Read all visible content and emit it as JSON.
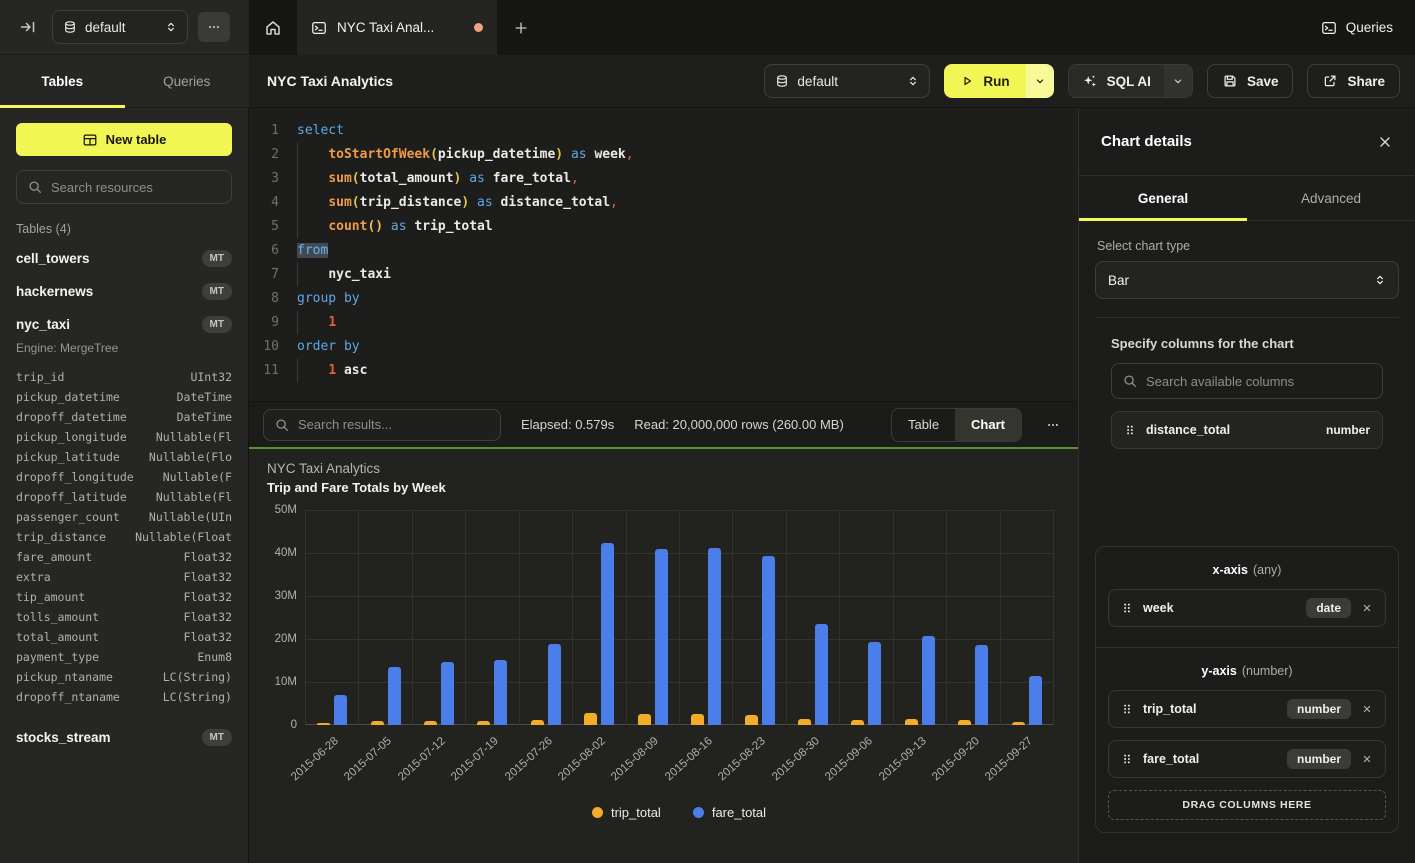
{
  "topbar": {
    "database_selector": "default",
    "active_tab": "NYC Taxi Anal...",
    "queries_button": "Queries"
  },
  "sidebar": {
    "tabs": [
      {
        "label": "Tables",
        "active": true
      },
      {
        "label": "Queries",
        "active": false
      }
    ],
    "new_table_button": "New table",
    "search_placeholder": "Search resources",
    "section_title": "Tables (4)",
    "tables": [
      {
        "name": "cell_towers",
        "badge": "MT"
      },
      {
        "name": "hackernews",
        "badge": "MT"
      },
      {
        "name": "nyc_taxi",
        "badge": "MT",
        "engine": "Engine: MergeTree",
        "columns": [
          {
            "name": "trip_id",
            "type": "UInt32"
          },
          {
            "name": "pickup_datetime",
            "type": "DateTime"
          },
          {
            "name": "dropoff_datetime",
            "type": "DateTime"
          },
          {
            "name": "pickup_longitude",
            "type": "Nullable(Fl"
          },
          {
            "name": "pickup_latitude",
            "type": "Nullable(Flo"
          },
          {
            "name": "dropoff_longitude",
            "type": "Nullable(F"
          },
          {
            "name": "dropoff_latitude",
            "type": "Nullable(Fl"
          },
          {
            "name": "passenger_count",
            "type": "Nullable(UIn"
          },
          {
            "name": "trip_distance",
            "type": "Nullable(Float"
          },
          {
            "name": "fare_amount",
            "type": "Float32"
          },
          {
            "name": "extra",
            "type": "Float32"
          },
          {
            "name": "tip_amount",
            "type": "Float32"
          },
          {
            "name": "tolls_amount",
            "type": "Float32"
          },
          {
            "name": "total_amount",
            "type": "Float32"
          },
          {
            "name": "payment_type",
            "type": "Enum8"
          },
          {
            "name": "pickup_ntaname",
            "type": "LC(String)"
          },
          {
            "name": "dropoff_ntaname",
            "type": "LC(String)"
          }
        ]
      },
      {
        "name": "stocks_stream",
        "badge": "MT"
      }
    ]
  },
  "toolbar": {
    "title": "NYC Taxi Analytics",
    "database_selector": "default",
    "run_button": "Run",
    "sql_ai_button": "SQL AI",
    "save_button": "Save",
    "share_button": "Share"
  },
  "editor": {
    "lines": [
      {
        "num": "1",
        "tokens": [
          [
            "kw",
            "select"
          ]
        ]
      },
      {
        "num": "2",
        "tokens": [
          [
            "ws",
            "    "
          ],
          [
            "fn",
            "toStartOfWeek"
          ],
          [
            "pa",
            "("
          ],
          [
            "id",
            "pickup_datetime"
          ],
          [
            "pa",
            ")"
          ],
          [
            "kw",
            " as "
          ],
          [
            "id",
            "week"
          ],
          [
            "pu",
            ","
          ]
        ]
      },
      {
        "num": "3",
        "tokens": [
          [
            "ws",
            "    "
          ],
          [
            "fn",
            "sum"
          ],
          [
            "pa",
            "("
          ],
          [
            "id",
            "total_amount"
          ],
          [
            "pa",
            ")"
          ],
          [
            "kw",
            " as "
          ],
          [
            "id",
            "fare_total"
          ],
          [
            "pu",
            ","
          ]
        ]
      },
      {
        "num": "4",
        "tokens": [
          [
            "ws",
            "    "
          ],
          [
            "fn",
            "sum"
          ],
          [
            "pa",
            "("
          ],
          [
            "id",
            "trip_distance"
          ],
          [
            "pa",
            ")"
          ],
          [
            "kw",
            " as "
          ],
          [
            "id",
            "distance_total"
          ],
          [
            "pu",
            ","
          ]
        ]
      },
      {
        "num": "5",
        "tokens": [
          [
            "ws",
            "    "
          ],
          [
            "fn",
            "count"
          ],
          [
            "pa",
            "()"
          ],
          [
            "kw",
            " as "
          ],
          [
            "id",
            "trip_total"
          ]
        ]
      },
      {
        "num": "6",
        "tokens": [
          [
            "hl",
            "from"
          ]
        ]
      },
      {
        "num": "7",
        "tokens": [
          [
            "ws",
            "    "
          ],
          [
            "id",
            "nyc_taxi"
          ]
        ]
      },
      {
        "num": "8",
        "tokens": [
          [
            "kw",
            "group by"
          ]
        ]
      },
      {
        "num": "9",
        "tokens": [
          [
            "ws",
            "    "
          ],
          [
            "nu",
            "1"
          ]
        ]
      },
      {
        "num": "10",
        "tokens": [
          [
            "kw",
            "order by"
          ]
        ]
      },
      {
        "num": "11",
        "tokens": [
          [
            "ws",
            "    "
          ],
          [
            "nu",
            "1"
          ],
          [
            "id",
            " asc"
          ]
        ]
      }
    ]
  },
  "results_bar": {
    "search_placeholder": "Search results...",
    "elapsed": "Elapsed: 0.579s",
    "read": "Read: 20,000,000 rows (260.00 MB)",
    "view_toggle": [
      {
        "label": "Table",
        "active": false
      },
      {
        "label": "Chart",
        "active": true
      }
    ]
  },
  "chart_panel": {
    "title": "NYC Taxi Analytics",
    "subtitle": "Trip and Fare Totals by Week"
  },
  "chart_data": {
    "type": "bar",
    "title": "NYC Taxi Analytics",
    "subtitle": "Trip and Fare Totals by Week",
    "categories": [
      "2015-06-28",
      "2015-07-05",
      "2015-07-12",
      "2015-07-19",
      "2015-07-26",
      "2015-08-02",
      "2015-08-09",
      "2015-08-16",
      "2015-08-23",
      "2015-08-30",
      "2015-09-06",
      "2015-09-13",
      "2015-09-20",
      "2015-09-27"
    ],
    "series": [
      {
        "name": "trip_total",
        "color": "#f3ab28",
        "values": [
          500000,
          900000,
          900000,
          950000,
          1150000,
          2800000,
          2600000,
          2450000,
          2350000,
          1500000,
          1200000,
          1300000,
          1200000,
          800000
        ]
      },
      {
        "name": "fare_total",
        "color": "#4b7ee8",
        "values": [
          6900000,
          13600000,
          14600000,
          15100000,
          18800000,
          42300000,
          41000000,
          41200000,
          39400000,
          23500000,
          19300000,
          20800000,
          18700000,
          11300000
        ]
      }
    ],
    "ylim": [
      0,
      50000000
    ],
    "yticks": [
      {
        "label": "50M",
        "value": 50000000
      },
      {
        "label": "40M",
        "value": 40000000
      },
      {
        "label": "30M",
        "value": 30000000
      },
      {
        "label": "20M",
        "value": 20000000
      },
      {
        "label": "10M",
        "value": 10000000
      },
      {
        "label": "0",
        "value": 0
      }
    ],
    "grid": true,
    "legend_position": "bottom"
  },
  "right_panel": {
    "title": "Chart details",
    "tabs": [
      {
        "label": "General",
        "active": true
      },
      {
        "label": "Advanced",
        "active": false
      }
    ],
    "chart_type_label": "Select chart type",
    "chart_type_value": "Bar",
    "columns_label": "Specify columns for the chart",
    "search_placeholder": "Search available columns",
    "available_columns": [
      {
        "name": "distance_total",
        "type": "number"
      }
    ],
    "x_axis": {
      "label": "x-axis",
      "hint": "(any)",
      "items": [
        {
          "name": "week",
          "type": "date"
        }
      ]
    },
    "y_axis": {
      "label": "y-axis",
      "hint": "(number)",
      "items": [
        {
          "name": "trip_total",
          "type": "number"
        },
        {
          "name": "fare_total",
          "type": "number"
        }
      ]
    },
    "drop_zone": "DRAG COLUMNS HERE"
  }
}
